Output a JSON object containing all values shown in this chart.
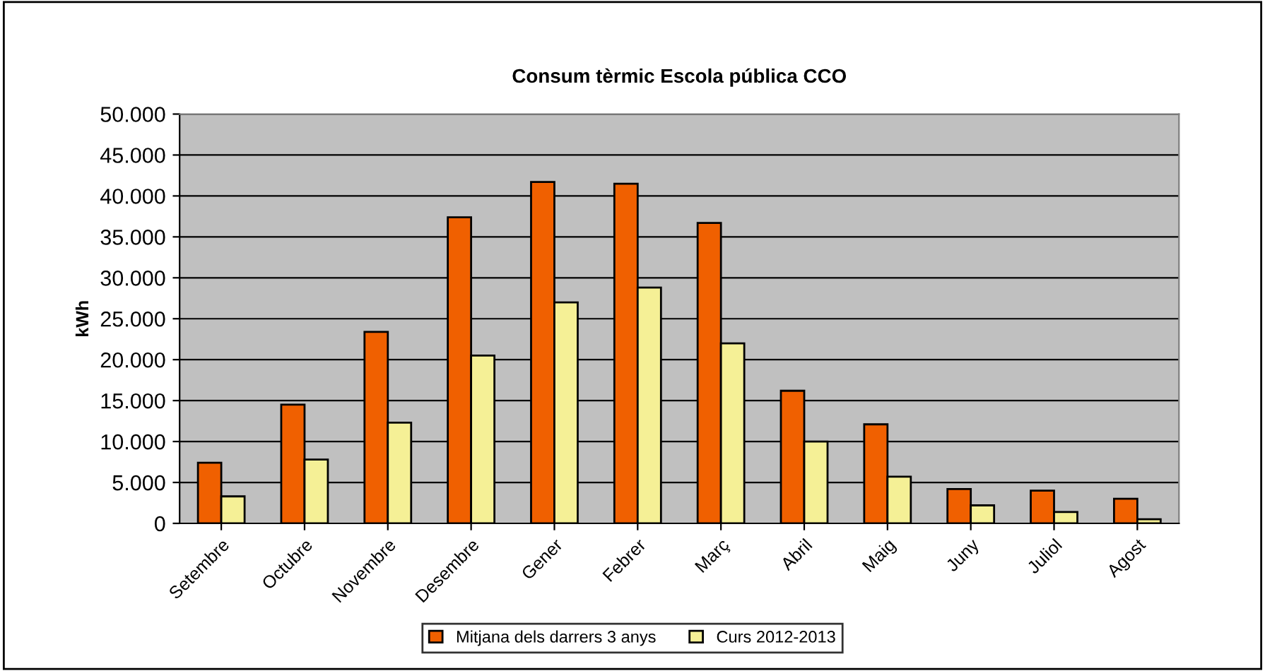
{
  "chart_data": {
    "type": "bar",
    "title": "Consum tèrmic Escola pública CCO",
    "ylabel": "kWh",
    "categories": [
      "Setembre",
      "Octubre",
      "Novembre",
      "Desembre",
      "Gener",
      "Febrer",
      "Març",
      "Abril",
      "Maig",
      "Juny",
      "Juliol",
      "Agost"
    ],
    "series": [
      {
        "name": "Mitjana dels darrers 3 anys",
        "color": "#f06000",
        "values": [
          7400,
          14500,
          23400,
          37400,
          41700,
          41500,
          36700,
          16200,
          12100,
          4200,
          4000,
          3000
        ]
      },
      {
        "name": "Curs 2012-2013",
        "color": "#f5f096",
        "values": [
          3300,
          7800,
          12300,
          20500,
          27000,
          28800,
          22000,
          10000,
          5700,
          2200,
          1400,
          500
        ]
      }
    ],
    "ylim": [
      0,
      50000
    ],
    "yticks": [
      0,
      {
        "value": 5000,
        "label": "5.000"
      },
      {
        "value": 10000,
        "label": "10.000"
      },
      {
        "value": 15000,
        "label": "15.000"
      },
      {
        "value": 20000,
        "label": "20.000"
      },
      {
        "value": 25000,
        "label": "25.000"
      },
      {
        "value": 30000,
        "label": "30.000"
      },
      {
        "value": 35000,
        "label": "35.000"
      },
      {
        "value": 40000,
        "label": "40.000"
      },
      {
        "value": 45000,
        "label": "45.000"
      },
      {
        "value": 50000,
        "label": "50.000"
      }
    ],
    "grid": "y",
    "legend": "bottom"
  }
}
